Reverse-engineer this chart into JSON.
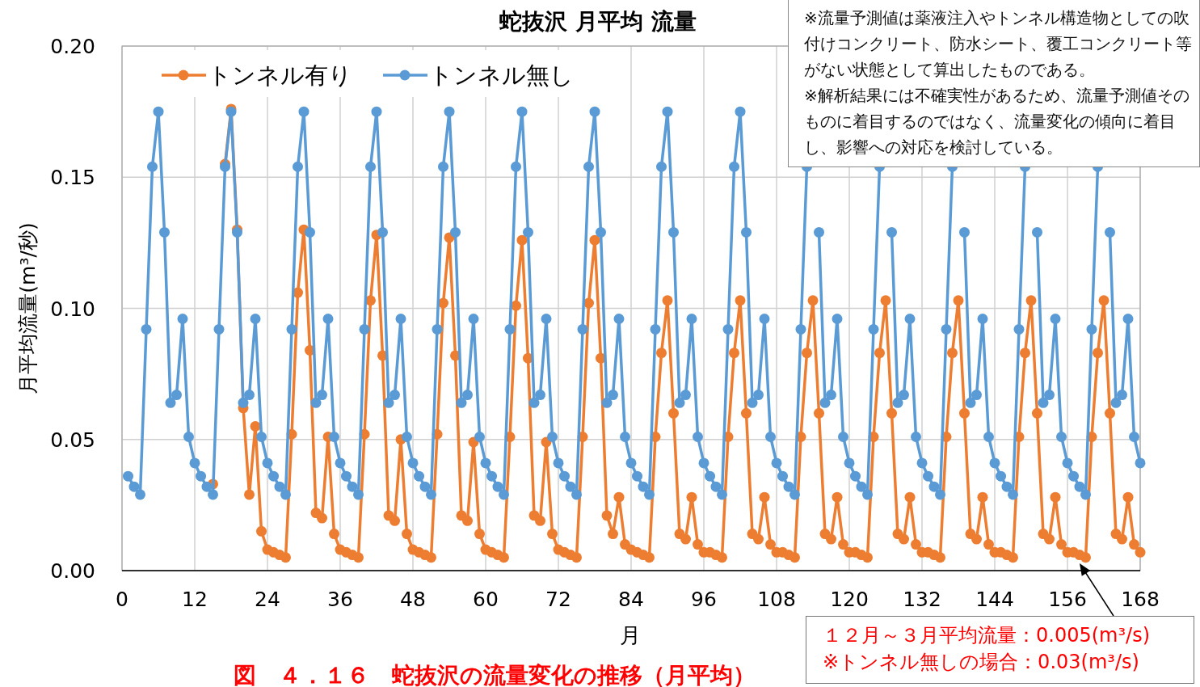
{
  "chart_data": {
    "type": "line",
    "title": "蛇抜沢 月平均 流量",
    "xlabel": "月",
    "ylabel": "月平均流量(m³/秒)",
    "x": [
      1,
      2,
      3,
      4,
      5,
      6,
      7,
      8,
      9,
      10,
      11,
      12,
      13,
      14,
      15,
      16,
      17,
      18,
      19,
      20,
      21,
      22,
      23,
      24,
      25,
      26,
      27,
      28,
      29,
      30,
      31,
      32,
      33,
      34,
      35,
      36,
      37,
      38,
      39,
      40,
      41,
      42,
      43,
      44,
      45,
      46,
      47,
      48,
      49,
      50,
      51,
      52,
      53,
      54,
      55,
      56,
      57,
      58,
      59,
      60,
      61,
      62,
      63,
      64,
      65,
      66,
      67,
      68,
      69,
      70,
      71,
      72,
      73,
      74,
      75,
      76,
      77,
      78,
      79,
      80,
      81,
      82,
      83,
      84,
      85,
      86,
      87,
      88,
      89,
      90,
      91,
      92,
      93,
      94,
      95,
      96,
      97,
      98,
      99,
      100,
      101,
      102,
      103,
      104,
      105,
      106,
      107,
      108,
      109,
      110,
      111,
      112,
      113,
      114,
      115,
      116,
      117,
      118,
      119,
      120,
      121,
      122,
      123,
      124,
      125,
      126,
      127,
      128,
      129,
      130,
      131,
      132,
      133,
      134,
      135,
      136,
      137,
      138,
      139,
      140,
      141,
      142,
      143,
      144,
      145,
      146,
      147,
      148,
      149,
      150,
      151,
      152,
      153,
      154,
      155,
      156,
      157,
      158,
      159,
      160,
      161,
      162,
      163,
      164,
      165,
      166,
      167,
      168
    ],
    "series": [
      {
        "name": "トンネル有り",
        "color": "#ed7d31",
        "values": [
          null,
          null,
          null,
          null,
          null,
          null,
          null,
          null,
          null,
          null,
          null,
          null,
          null,
          null,
          0.033,
          null,
          0.155,
          0.176,
          0.13,
          0.062,
          0.029,
          0.055,
          0.015,
          0.008,
          0.007,
          0.006,
          0.005,
          0.052,
          0.106,
          0.13,
          0.084,
          0.022,
          0.02,
          0.051,
          0.014,
          0.008,
          0.007,
          0.006,
          0.005,
          0.052,
          0.103,
          0.128,
          0.082,
          0.021,
          0.019,
          0.05,
          0.014,
          0.008,
          0.007,
          0.006,
          0.005,
          0.052,
          0.102,
          0.127,
          0.082,
          0.021,
          0.019,
          0.049,
          0.014,
          0.008,
          0.007,
          0.006,
          0.005,
          0.051,
          0.101,
          0.126,
          0.081,
          0.021,
          0.019,
          0.049,
          0.014,
          0.008,
          0.007,
          0.006,
          0.005,
          0.051,
          0.102,
          0.126,
          0.081,
          0.021,
          0.014,
          0.028,
          0.01,
          0.008,
          0.007,
          0.006,
          0.005,
          0.051,
          0.083,
          0.103,
          0.06,
          0.014,
          0.012,
          0.028,
          0.01,
          0.007,
          0.007,
          0.006,
          0.005,
          0.051,
          0.083,
          0.103,
          0.06,
          0.014,
          0.012,
          0.028,
          0.01,
          0.007,
          0.007,
          0.006,
          0.005,
          0.051,
          0.083,
          0.103,
          0.06,
          0.014,
          0.012,
          0.028,
          0.01,
          0.007,
          0.007,
          0.006,
          0.005,
          0.051,
          0.083,
          0.103,
          0.06,
          0.014,
          0.012,
          0.028,
          0.01,
          0.007,
          0.007,
          0.006,
          0.005,
          0.051,
          0.083,
          0.103,
          0.06,
          0.014,
          0.012,
          0.028,
          0.01,
          0.007,
          0.007,
          0.006,
          0.005,
          0.051,
          0.083,
          0.103,
          0.06,
          0.014,
          0.012,
          0.028,
          0.01,
          0.007,
          0.007,
          0.006,
          0.005,
          0.051,
          0.083,
          0.103,
          0.06,
          0.014,
          0.012,
          0.028,
          0.01,
          0.007
        ]
      },
      {
        "name": "トンネル無し",
        "color": "#5b9bd5",
        "values": [
          0.036,
          0.032,
          0.029,
          0.092,
          0.154,
          0.175,
          0.129,
          0.064,
          0.067,
          0.096,
          0.051,
          0.041,
          0.036,
          0.032,
          0.029,
          0.092,
          0.154,
          0.175,
          0.129,
          0.064,
          0.067,
          0.096,
          0.051,
          0.041,
          0.036,
          0.032,
          0.029,
          0.092,
          0.154,
          0.175,
          0.129,
          0.064,
          0.067,
          0.096,
          0.051,
          0.041,
          0.036,
          0.032,
          0.029,
          0.092,
          0.154,
          0.175,
          0.129,
          0.064,
          0.067,
          0.096,
          0.051,
          0.041,
          0.036,
          0.032,
          0.029,
          0.092,
          0.154,
          0.175,
          0.129,
          0.064,
          0.067,
          0.096,
          0.051,
          0.041,
          0.036,
          0.032,
          0.029,
          0.092,
          0.154,
          0.175,
          0.129,
          0.064,
          0.067,
          0.096,
          0.051,
          0.041,
          0.036,
          0.032,
          0.029,
          0.092,
          0.154,
          0.175,
          0.129,
          0.064,
          0.067,
          0.096,
          0.051,
          0.041,
          0.036,
          0.032,
          0.029,
          0.092,
          0.154,
          0.175,
          0.129,
          0.064,
          0.067,
          0.096,
          0.051,
          0.041,
          0.036,
          0.032,
          0.029,
          0.092,
          0.154,
          0.175,
          0.129,
          0.064,
          0.067,
          0.096,
          0.051,
          0.041,
          0.036,
          0.032,
          0.029,
          0.092,
          0.154,
          null,
          0.129,
          0.064,
          0.067,
          0.096,
          0.051,
          0.041,
          0.036,
          0.032,
          0.029,
          0.092,
          0.154,
          null,
          0.129,
          0.064,
          0.067,
          0.096,
          0.051,
          0.041,
          0.036,
          0.032,
          0.029,
          0.092,
          0.154,
          null,
          0.129,
          0.064,
          0.067,
          0.096,
          0.051,
          0.041,
          0.036,
          0.032,
          0.029,
          0.092,
          0.154,
          null,
          0.129,
          0.064,
          0.067,
          0.096,
          0.051,
          0.041,
          0.036,
          0.032,
          0.029,
          0.092,
          0.154,
          null,
          0.129,
          0.064,
          0.067,
          0.096,
          0.051,
          0.041
        ]
      }
    ],
    "xlim": [
      0,
      168
    ],
    "xticks": [
      0,
      12,
      24,
      36,
      48,
      60,
      72,
      84,
      96,
      108,
      120,
      132,
      144,
      156,
      168
    ],
    "ylim": [
      0,
      0.2
    ],
    "yticks": [
      {
        "value": 0,
        "label": "0.00"
      },
      {
        "value": 0.05,
        "label": "0.05"
      },
      {
        "value": 0.1,
        "label": "0.10"
      },
      {
        "value": 0.15,
        "label": "0.15"
      },
      {
        "value": 0.2,
        "label": "0.20"
      }
    ],
    "grid": true,
    "legend": "top left",
    "marker": "circle",
    "line_style": "solid",
    "annotations": [
      "※流量予測値は薬液注入やトンネル構造物としての吹付けコンクリート、防水シート、覆工コンクリート等がない状態として算出したものである。\n※解析結果には不確実性があるため、流量予測値そのものに着目するのではなく、流量変化の傾向に着目し、影響への対応を検討している。",
      "１２月～３月平均流量：0.005(m³/s)\n※トンネル無しの場合：0.03(m³/s)",
      "図　４．１６　蛇抜沢の流量変化の推移（月平均）"
    ]
  }
}
